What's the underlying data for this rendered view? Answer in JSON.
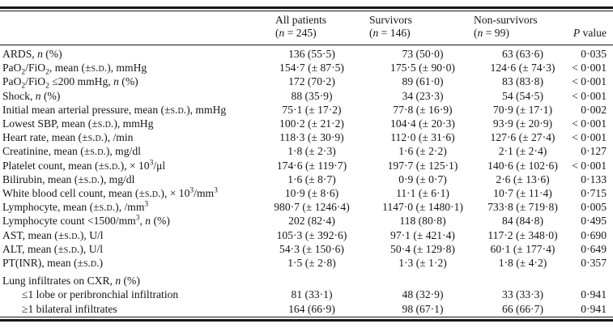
{
  "style": {
    "ink_color": "#161616",
    "background_color": "#ffffff"
  },
  "table": {
    "header": {
      "stub": "",
      "columns": [
        {
          "line1": "All patients",
          "line2_html": "(<i>n</i> = 245)"
        },
        {
          "line1": "Survivors",
          "line2_html": "(<i>n</i> = 146)"
        },
        {
          "line1": "Non-survivors",
          "line2_html": "(<i>n</i> = 99)"
        },
        {
          "line1": "",
          "line2_html": "<i>P</i> value"
        }
      ]
    },
    "rows": [
      {
        "type": "normal",
        "label_html": "ARDS, <i>n</i> (%)",
        "values": [
          "136 (55·5)",
          "73 (50·0)",
          "63 (63·6)",
          "0·035"
        ]
      },
      {
        "type": "normal",
        "label_html": "PaO<sub>2</sub>/FiO<sub>2</sub>, mean (±<span class=\"sc\">s.d.</span>), mmHg",
        "values": [
          "154·7 (± 87·5)",
          "175·5 (± 90·0)",
          "124·6 (± 74·3)",
          "< 0·001"
        ]
      },
      {
        "type": "normal",
        "label_html": "PaO<sub>2</sub>/FiO<sub>2</sub> ≤200 mmHg, <i>n</i> (%)",
        "values": [
          "172 (70·2)",
          "89 (61·0)",
          "83 (83·8)",
          "< 0·001"
        ]
      },
      {
        "type": "normal",
        "label_html": "Shock, <i>n</i> (%)",
        "values": [
          "88 (35·9)",
          "34 (23·3)",
          "54 (54·5)",
          "< 0·001"
        ]
      },
      {
        "type": "normal",
        "label_html": "Initial mean arterial pressure, mean (±<span class=\"sc\">s.d.</span>), mmHg",
        "values": [
          "75·1 (± 17·2)",
          "77·8 (± 16·9)",
          "70·9 (± 17·1)",
          "0·002"
        ]
      },
      {
        "type": "normal",
        "label_html": "Lowest SBP, mean (±<span class=\"sc\">s.d.</span>), mmHg",
        "values": [
          "100·2 (± 21·2)",
          "104·4 (± 20·3)",
          "93·9 (± 20·9)",
          "< 0·001"
        ]
      },
      {
        "type": "normal",
        "label_html": "Heart rate, mean (±<span class=\"sc\">s.d.</span>), /min",
        "values": [
          "118·3 (± 30·9)",
          "112·0 (± 31·6)",
          "127·6 (± 27·4)",
          "< 0·001"
        ]
      },
      {
        "type": "normal",
        "label_html": "Creatinine, mean (±<span class=\"sc\">s.d.</span>), mg/dl",
        "values": [
          "1·8 (± 2·3)",
          "1·6 (± 2·2)",
          "2·1 (± 2·4)",
          "0·127"
        ]
      },
      {
        "type": "normal",
        "label_html": "Platelet count, mean (±<span class=\"sc\">s.d.</span>), × 10<sup>3</sup>/μl",
        "values": [
          "174·6 (± 119·7)",
          "197·7 (± 125·1)",
          "140·6 (± 102·6)",
          "< 0·001"
        ]
      },
      {
        "type": "normal",
        "label_html": "Bilirubin, mean (±<span class=\"sc\">s.d.</span>), mg/dl",
        "values": [
          "1·6 (± 8·7)",
          "0·9 (± 0·7)",
          "2·6 (± 13·6)",
          "0·133"
        ]
      },
      {
        "type": "normal",
        "label_html": "White blood cell count, mean (±<span class=\"sc\">s.d.</span>), × 10<sup>3</sup>/mm<sup>3</sup>",
        "values": [
          "10·9 (± 8·6)",
          "11·1 (± 6·1)",
          "10·7 (± 11·4)",
          "0·715"
        ]
      },
      {
        "type": "normal",
        "label_html": "Lymphocyte, mean (±<span class=\"sc\">s.d.</span>), /mm<sup>3</sup>",
        "values": [
          "980·7 (± 1246·4)",
          "1147·0 (± 1480·1)",
          "733·8 (± 719·8)",
          "0·005"
        ]
      },
      {
        "type": "normal",
        "label_html": "Lymphocyte count &lt;1500/mm<sup>3</sup>, <i>n</i> (%)",
        "values": [
          "202 (82·4)",
          "118 (80·8)",
          "84 (84·8)",
          "0·495"
        ]
      },
      {
        "type": "normal",
        "label_html": "AST, mean (±<span class=\"sc\">s.d.</span>), U/l",
        "values": [
          "105·3 (± 392·6)",
          "97·1 (± 421·4)",
          "117·2 (± 348·0)",
          "0·690"
        ]
      },
      {
        "type": "normal",
        "label_html": "ALT, mean (±<span class=\"sc\">s.d.</span>), U/l",
        "values": [
          "54·3 (± 150·6)",
          "50·4 (± 129·8)",
          "60·1 (± 177·4)",
          "0·649"
        ]
      },
      {
        "type": "normal",
        "label_html": "PT(INR), mean (±<span class=\"sc\">s.d.</span>)",
        "values": [
          "1·5 (± 2·8)",
          "1·3 (± 1·2)",
          "1·8 (± 4·2)",
          "0·357"
        ]
      },
      {
        "type": "section",
        "label_html": "Lung infiltrates on CXR, <i>n</i> (%)",
        "values": [
          "",
          "",
          "",
          ""
        ]
      },
      {
        "type": "sub",
        "label_html": "≤1 lobe or peribronchial infiltration",
        "values": [
          "81 (33·1)",
          "48 (32·9)",
          "33 (33·3)",
          "0·941"
        ]
      },
      {
        "type": "sub",
        "label_html": "≥1 bilateral infiltrates",
        "values": [
          "164 (66·9)",
          "98 (67·1)",
          "66 (66·7)",
          "0·941"
        ]
      }
    ]
  }
}
